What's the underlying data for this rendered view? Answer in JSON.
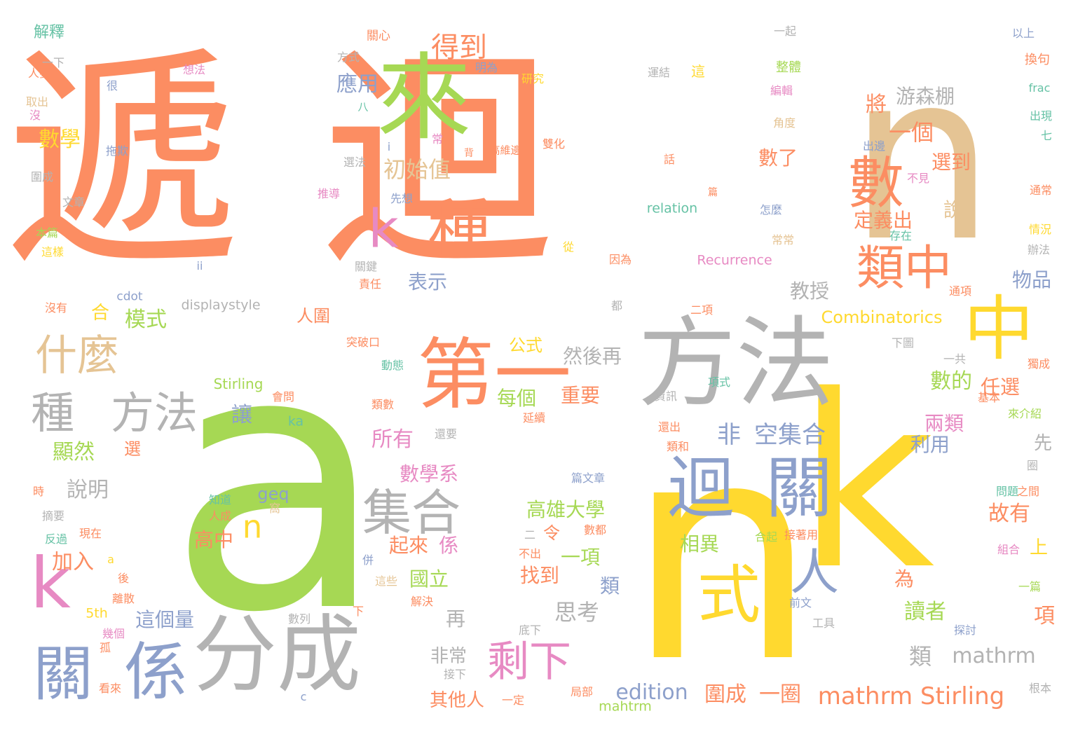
{
  "colors": {
    "orange": "#fc8d62",
    "green": "#a6d854",
    "yellow": "#ffd92f",
    "tan": "#e5c494",
    "gray": "#b3b3b3",
    "blue": "#8da0cb",
    "pink": "#e78ac3",
    "teal": "#66c2a5"
  },
  "words": [
    "遞",
    "迴",
    "n",
    "a",
    "n",
    "k",
    "來",
    "數",
    "種",
    "k",
    "中",
    "方法",
    "第一",
    "類中",
    "迴",
    "關",
    "集合",
    "什麼",
    "種",
    "方法",
    "分成",
    "係",
    "關",
    "k",
    "剩下",
    "式",
    "人",
    "n",
    "得到",
    "應用",
    "一個",
    "游森棚",
    "將",
    "數學",
    "初始值",
    "表示",
    "教授",
    "非",
    "空集合",
    "數了",
    "選到",
    "說",
    "定義出",
    "物品",
    "Combinatorics",
    "公式",
    "然後再",
    "模式",
    "合",
    "人圍",
    "每個",
    "重要",
    "數的",
    "任選",
    "讓",
    "兩類",
    "所有",
    "利用",
    "顯然",
    "選",
    "說明",
    "數學系",
    "先",
    "故有",
    "高雄大學",
    "令",
    "高中",
    "加入",
    "起來",
    "係",
    "相異",
    "上",
    "一項",
    "國立",
    "找到",
    "思考",
    "類",
    "為",
    "讀者",
    "項",
    "再",
    "這個量",
    "非常",
    "類",
    "mathrm",
    "其他人",
    "edition",
    "圍成",
    "一圈",
    "mathrm Stirling",
    "relation",
    "Recurrence",
    "displaystyle",
    "cdot",
    "Stirling",
    "ka",
    "geq",
    "5th",
    "mahtrm",
    "解釋",
    "關心",
    "一起",
    "以上",
    "方式",
    "一下",
    "人要",
    "想法",
    "明為",
    "研究",
    "運結",
    "這",
    "整體",
    "換句",
    "很",
    "取出",
    "沒",
    "八",
    "編輯",
    "frac",
    "角度",
    "出現",
    "七",
    "常",
    "高維邊",
    "雙化",
    "拖欺",
    "i",
    "背",
    "出邊",
    "話",
    "選法",
    "不見",
    "圍成",
    "通常",
    "文章",
    "推導",
    "先想",
    "篇",
    "怎麼",
    "本篇",
    "情況",
    "存在",
    "從",
    "常常",
    "這樣",
    "辦法",
    "ii",
    "關鍵",
    "因為",
    "責任",
    "通項",
    "沒有",
    "都",
    "二項",
    "突破口",
    "下圖",
    "一共",
    "動態",
    "獨成",
    "會問",
    "資訊",
    "項式",
    "基本",
    "類數",
    "來介紹",
    "延續",
    "還出",
    "類和",
    "圈",
    "還要",
    "篇文章",
    "時",
    "知道",
    "人成",
    "窩",
    "問題",
    "之間",
    "摘要",
    "現在",
    "反過",
    "數都",
    "合起",
    "接著用",
    "二",
    "不出",
    "組合",
    "a",
    "併",
    "後",
    "離散",
    "這些",
    "解決",
    "一篇",
    "下",
    "前文",
    "數列",
    "底下",
    "工具",
    "幾個",
    "孤",
    "探討",
    "看來",
    "接下",
    "一定",
    "局部",
    "根本",
    "c"
  ]
}
